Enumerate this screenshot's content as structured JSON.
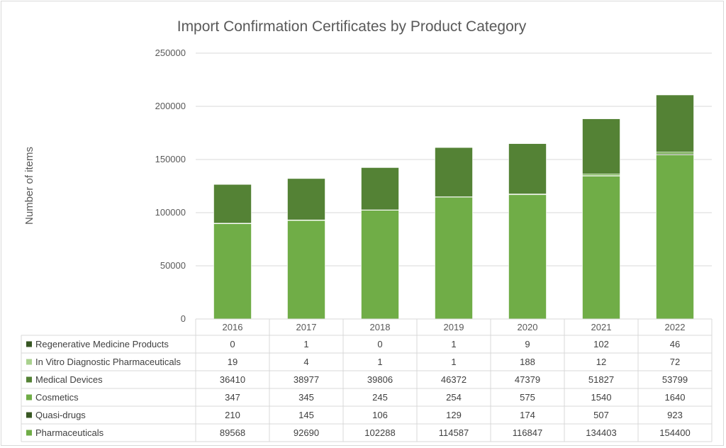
{
  "chart_data": {
    "type": "bar",
    "stacked": true,
    "title": "Import Confirmation Certificates by Product Category",
    "ylabel": "Number of items",
    "xlabel": "",
    "ylim": [
      0,
      250000
    ],
    "yticks": [
      "0",
      "50000",
      "100000",
      "150000",
      "200000",
      "250000"
    ],
    "grid": true,
    "legend_placement": "data table rows",
    "categories": [
      "2016",
      "2017",
      "2018",
      "2019",
      "2020",
      "2021",
      "2022"
    ],
    "series": [
      {
        "name": "Regenerative Medicine Products",
        "color": "#375623",
        "values": [
          0,
          1,
          0,
          1,
          9,
          102,
          46
        ]
      },
      {
        "name": "In Vitro Diagnostic Pharmaceuticals",
        "color": "#a9d18e",
        "values": [
          19,
          4,
          1,
          1,
          188,
          12,
          72
        ]
      },
      {
        "name": "Medical Devices",
        "color": "#548235",
        "values": [
          36410,
          38977,
          39806,
          46372,
          47379,
          51827,
          53799
        ]
      },
      {
        "name": "Cosmetics",
        "color": "#70ad47",
        "values": [
          347,
          345,
          245,
          254,
          575,
          1540,
          1640
        ]
      },
      {
        "name": "Quasi-drugs",
        "color": "#385723",
        "values": [
          210,
          145,
          106,
          129,
          174,
          507,
          923
        ]
      },
      {
        "name": "Pharmaceuticals",
        "color": "#70ad47",
        "values": [
          89568,
          92690,
          102288,
          114587,
          116847,
          134403,
          154400
        ]
      }
    ]
  }
}
